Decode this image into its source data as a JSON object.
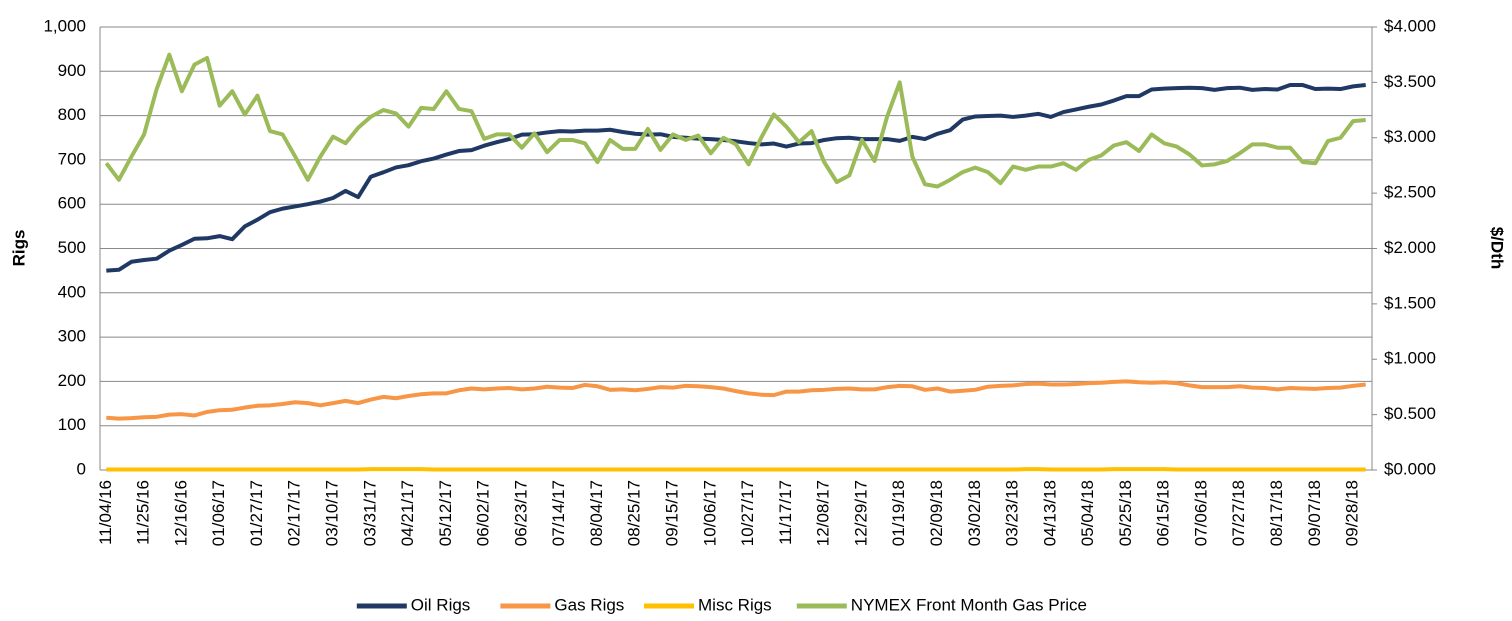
{
  "chart_data": {
    "type": "line",
    "y_label": "Rigs",
    "y2_label": "$/Dth",
    "categories": [
      "11/04/16",
      null,
      null,
      "11/25/16",
      null,
      null,
      "12/16/16",
      null,
      null,
      "01/06/17",
      null,
      null,
      "01/27/17",
      null,
      null,
      "02/17/17",
      null,
      null,
      "03/10/17",
      null,
      null,
      "03/31/17",
      null,
      null,
      "04/21/17",
      null,
      null,
      "05/12/17",
      null,
      null,
      "06/02/17",
      null,
      null,
      "06/23/17",
      null,
      null,
      "07/14/17",
      null,
      null,
      "08/04/17",
      null,
      null,
      "08/25/17",
      null,
      null,
      "09/15/17",
      null,
      null,
      "10/06/17",
      null,
      null,
      "10/27/17",
      null,
      null,
      "11/17/17",
      null,
      null,
      "12/08/17",
      null,
      null,
      "12/29/17",
      null,
      null,
      "01/19/18",
      null,
      null,
      "02/09/18",
      null,
      null,
      "03/02/18",
      null,
      null,
      "03/23/18",
      null,
      null,
      "04/13/18",
      null,
      null,
      "05/04/18",
      null,
      null,
      "05/25/18",
      null,
      null,
      "06/15/18",
      null,
      null,
      "07/06/18",
      null,
      null,
      "07/27/18",
      null,
      null,
      "08/17/18",
      null,
      null,
      "09/07/18",
      null,
      null,
      "09/28/18",
      null
    ],
    "series": [
      {
        "name": "Oil Rigs",
        "color": "#203864",
        "values": [
          450,
          452,
          470,
          474,
          477,
          495,
          508,
          522,
          523,
          528,
          521,
          550,
          565,
          582,
          590,
          595,
          600,
          606,
          614,
          630,
          616,
          662,
          672,
          683,
          688,
          697,
          703,
          712,
          720,
          722,
          732,
          740,
          747,
          757,
          758,
          762,
          765,
          764,
          766,
          766,
          768,
          763,
          759,
          757,
          758,
          752,
          750,
          748,
          747,
          745,
          742,
          738,
          735,
          737,
          730,
          737,
          738,
          745,
          749,
          750,
          747,
          747,
          747,
          743,
          752,
          747,
          759,
          767,
          791,
          798,
          799,
          800,
          797,
          800,
          804,
          797,
          808,
          814,
          820,
          825,
          834,
          844,
          844,
          859,
          861,
          862,
          863,
          862,
          858,
          862,
          863,
          858,
          860,
          859,
          869,
          869,
          860,
          861,
          860,
          866,
          869
        ]
      },
      {
        "name": "Gas Rigs",
        "color": "#f79646",
        "values": [
          118,
          116,
          117,
          119,
          120,
          125,
          126,
          123,
          131,
          135,
          136,
          141,
          145,
          146,
          149,
          153,
          151,
          146,
          151,
          156,
          151,
          159,
          165,
          162,
          167,
          171,
          173,
          173,
          180,
          184,
          182,
          184,
          185,
          182,
          184,
          188,
          186,
          185,
          192,
          189,
          181,
          182,
          180,
          183,
          187,
          186,
          190,
          189,
          187,
          184,
          178,
          173,
          170,
          169,
          177,
          177,
          180,
          181,
          183,
          184,
          182,
          182,
          187,
          190,
          189,
          181,
          184,
          177,
          179,
          181,
          188,
          190,
          191,
          194,
          195,
          193,
          193,
          194,
          196,
          197,
          199,
          200,
          198,
          197,
          198,
          196,
          191,
          187,
          187,
          187,
          189,
          186,
          185,
          182,
          185,
          184,
          183,
          185,
          186,
          190,
          193
        ]
      },
      {
        "name": "Misc Rigs",
        "color": "#ffc000",
        "values": [
          1,
          1,
          1,
          1,
          1,
          1,
          1,
          1,
          1,
          1,
          1,
          1,
          1,
          1,
          1,
          1,
          1,
          1,
          1,
          1,
          1,
          2,
          2,
          2,
          2,
          2,
          1,
          1,
          1,
          1,
          1,
          1,
          1,
          1,
          1,
          1,
          1,
          1,
          1,
          1,
          1,
          1,
          1,
          1,
          1,
          1,
          1,
          1,
          1,
          1,
          1,
          1,
          1,
          1,
          1,
          1,
          1,
          1,
          1,
          1,
          1,
          1,
          1,
          1,
          1,
          1,
          1,
          1,
          1,
          1,
          1,
          1,
          1,
          2,
          2,
          1,
          1,
          1,
          1,
          1,
          2,
          2,
          2,
          2,
          2,
          1,
          1,
          1,
          1,
          1,
          1,
          1,
          1,
          1,
          1,
          1,
          1,
          1,
          1,
          1,
          1
        ]
      },
      {
        "name": "NYMEX Front Month Gas Price",
        "color": "#9bbb59",
        "axis": "y2",
        "values": [
          2.77,
          2.62,
          2.83,
          3.03,
          3.44,
          3.75,
          3.42,
          3.66,
          3.72,
          3.29,
          3.42,
          3.21,
          3.38,
          3.06,
          3.03,
          2.83,
          2.62,
          2.83,
          3.01,
          2.95,
          3.09,
          3.19,
          3.25,
          3.22,
          3.1,
          3.27,
          3.26,
          3.42,
          3.26,
          3.24,
          2.99,
          3.03,
          3.03,
          2.91,
          3.04,
          2.87,
          2.98,
          2.98,
          2.95,
          2.78,
          2.98,
          2.9,
          2.9,
          3.08,
          2.89,
          3.03,
          2.98,
          3.02,
          2.86,
          3.0,
          2.94,
          2.76,
          3.0,
          3.21,
          3.1,
          2.96,
          3.06,
          2.78,
          2.6,
          2.66,
          2.98,
          2.79,
          3.19,
          3.5,
          2.83,
          2.58,
          2.56,
          2.62,
          2.69,
          2.73,
          2.69,
          2.59,
          2.74,
          2.71,
          2.74,
          2.74,
          2.77,
          2.71,
          2.8,
          2.84,
          2.93,
          2.96,
          2.88,
          3.03,
          2.95,
          2.92,
          2.85,
          2.75,
          2.76,
          2.79,
          2.86,
          2.94,
          2.94,
          2.91,
          2.91,
          2.78,
          2.77,
          2.97,
          3.0,
          3.15,
          3.16
        ]
      }
    ],
    "ylim": [
      0,
      1000
    ],
    "yticks": [
      0,
      100,
      200,
      300,
      400,
      500,
      600,
      700,
      800,
      900,
      {
        "value": 1000,
        "label": "1,000"
      }
    ],
    "y2lim": [
      0,
      4
    ],
    "y2ticks": [
      {
        "value": 0,
        "label": "$0.000"
      },
      {
        "value": 0.5,
        "label": "$0.500"
      },
      {
        "value": 1,
        "label": "$1.000"
      },
      {
        "value": 1.5,
        "label": "$1.500"
      },
      {
        "value": 2,
        "label": "$2.000"
      },
      {
        "value": 2.5,
        "label": "$2.500"
      },
      {
        "value": 3,
        "label": "$3.000"
      },
      {
        "value": 3.5,
        "label": "$3.500"
      },
      {
        "value": 4,
        "label": "$4.000"
      }
    ],
    "grid": true,
    "legend": "bottom"
  }
}
